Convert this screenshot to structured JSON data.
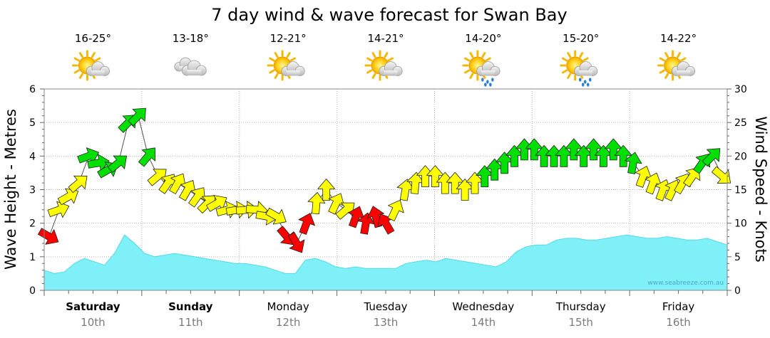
{
  "chart_data": {
    "type": "line",
    "title": "7 day wind & wave forecast for Swan Bay",
    "ylabel_left": "Wave Height - Metres",
    "ylabel_right": "Wind Speed - Knots",
    "ylim_left": [
      0,
      6
    ],
    "ylim_right": [
      0,
      30
    ],
    "yticks_left": [
      "0",
      "1",
      "2",
      "3",
      "4",
      "5",
      "6"
    ],
    "yticks_right": [
      "0",
      "5",
      "10",
      "15",
      "20",
      "25",
      "30"
    ],
    "watermark": "www.seabreeze.com.au",
    "days": [
      {
        "name": "Saturday",
        "date": "10th",
        "temp": "16-25°",
        "weather": "partly-cloudy",
        "bold": true
      },
      {
        "name": "Sunday",
        "date": "11th",
        "temp": "13-18°",
        "weather": "cloudy",
        "bold": true
      },
      {
        "name": "Monday",
        "date": "12th",
        "temp": "12-21°",
        "weather": "partly-cloudy",
        "bold": false
      },
      {
        "name": "Tuesday",
        "date": "13th",
        "temp": "14-21°",
        "weather": "partly-cloudy",
        "bold": false
      },
      {
        "name": "Wednesday",
        "date": "14th",
        "temp": "14-20°",
        "weather": "showers",
        "bold": false
      },
      {
        "name": "Thursday",
        "date": "15th",
        "temp": "15-20°",
        "weather": "showers",
        "bold": false
      },
      {
        "name": "Friday",
        "date": "16th",
        "temp": "14-22°",
        "weather": "partly-cloudy",
        "bold": false
      }
    ],
    "wave_height_m": [
      0.6,
      0.5,
      0.55,
      0.8,
      0.95,
      0.85,
      0.75,
      1.1,
      1.65,
      1.4,
      1.1,
      1.0,
      1.05,
      1.1,
      1.05,
      1.0,
      0.95,
      0.9,
      0.85,
      0.8,
      0.8,
      0.75,
      0.7,
      0.6,
      0.5,
      0.5,
      0.9,
      0.95,
      0.85,
      0.7,
      0.65,
      0.7,
      0.65,
      0.65,
      0.65,
      0.65,
      0.8,
      0.85,
      0.9,
      0.85,
      0.95,
      0.9,
      0.85,
      0.8,
      0.75,
      0.7,
      0.85,
      1.15,
      1.3,
      1.35,
      1.35,
      1.5,
      1.55,
      1.55,
      1.5,
      1.5,
      1.55,
      1.6,
      1.65,
      1.6,
      1.55,
      1.55,
      1.6,
      1.55,
      1.5,
      1.5,
      1.55,
      1.45,
      1.35
    ],
    "wind_colors": {
      "light": "#ffff00",
      "moderate": "#00e000",
      "strong": "#ff0000"
    },
    "wind_series": [
      {
        "knots": 8,
        "dir": 300,
        "cat": "strong"
      },
      {
        "knots": 12,
        "dir": 250,
        "cat": "light"
      },
      {
        "knots": 14,
        "dir": 240,
        "cat": "light"
      },
      {
        "knots": 16,
        "dir": 230,
        "cat": "light"
      },
      {
        "knots": 20,
        "dir": 250,
        "cat": "moderate"
      },
      {
        "knots": 19,
        "dir": 260,
        "cat": "moderate"
      },
      {
        "knots": 18,
        "dir": 240,
        "cat": "moderate"
      },
      {
        "knots": 19,
        "dir": 230,
        "cat": "moderate"
      },
      {
        "knots": 25,
        "dir": 225,
        "cat": "moderate"
      },
      {
        "knots": 26,
        "dir": 225,
        "cat": "moderate"
      },
      {
        "knots": 20,
        "dir": 220,
        "cat": "moderate"
      },
      {
        "knots": 17,
        "dir": 230,
        "cat": "light"
      },
      {
        "knots": 16,
        "dir": 215,
        "cat": "light"
      },
      {
        "knots": 16,
        "dir": 210,
        "cat": "light"
      },
      {
        "knots": 15,
        "dir": 210,
        "cat": "light"
      },
      {
        "knots": 14,
        "dir": 215,
        "cat": "light"
      },
      {
        "knots": 13,
        "dir": 225,
        "cat": "light"
      },
      {
        "knots": 13,
        "dir": 240,
        "cat": "light"
      },
      {
        "knots": 12,
        "dir": 255,
        "cat": "light"
      },
      {
        "knots": 12,
        "dir": 260,
        "cat": "light"
      },
      {
        "knots": 12,
        "dir": 265,
        "cat": "light"
      },
      {
        "knots": 12,
        "dir": 275,
        "cat": "light"
      },
      {
        "knots": 11,
        "dir": 280,
        "cat": "light"
      },
      {
        "knots": 11,
        "dir": 300,
        "cat": "light"
      },
      {
        "knots": 8,
        "dir": 320,
        "cat": "strong"
      },
      {
        "knots": 7,
        "dir": 330,
        "cat": "strong"
      },
      {
        "knots": 10,
        "dir": 200,
        "cat": "strong"
      },
      {
        "knots": 13,
        "dir": 185,
        "cat": "light"
      },
      {
        "knots": 15,
        "dir": 180,
        "cat": "light"
      },
      {
        "knots": 13,
        "dir": 205,
        "cat": "light"
      },
      {
        "knots": 12,
        "dir": 230,
        "cat": "light"
      },
      {
        "knots": 11,
        "dir": 200,
        "cat": "strong"
      },
      {
        "knots": 10,
        "dir": 190,
        "cat": "strong"
      },
      {
        "knots": 11,
        "dir": 165,
        "cat": "strong"
      },
      {
        "knots": 10,
        "dir": 150,
        "cat": "strong"
      },
      {
        "knots": 12,
        "dir": 205,
        "cat": "light"
      },
      {
        "knots": 15,
        "dir": 190,
        "cat": "light"
      },
      {
        "knots": 16,
        "dir": 185,
        "cat": "light"
      },
      {
        "knots": 17,
        "dir": 180,
        "cat": "light"
      },
      {
        "knots": 17,
        "dir": 180,
        "cat": "light"
      },
      {
        "knots": 16,
        "dir": 180,
        "cat": "light"
      },
      {
        "knots": 16,
        "dir": 180,
        "cat": "light"
      },
      {
        "knots": 15,
        "dir": 180,
        "cat": "light"
      },
      {
        "knots": 16,
        "dir": 180,
        "cat": "light"
      },
      {
        "knots": 17,
        "dir": 180,
        "cat": "moderate"
      },
      {
        "knots": 18,
        "dir": 180,
        "cat": "moderate"
      },
      {
        "knots": 19,
        "dir": 180,
        "cat": "moderate"
      },
      {
        "knots": 20,
        "dir": 180,
        "cat": "moderate"
      },
      {
        "knots": 21,
        "dir": 180,
        "cat": "moderate"
      },
      {
        "knots": 21,
        "dir": 180,
        "cat": "moderate"
      },
      {
        "knots": 20,
        "dir": 180,
        "cat": "moderate"
      },
      {
        "knots": 20,
        "dir": 180,
        "cat": "moderate"
      },
      {
        "knots": 20,
        "dir": 180,
        "cat": "moderate"
      },
      {
        "knots": 21,
        "dir": 180,
        "cat": "moderate"
      },
      {
        "knots": 20,
        "dir": 180,
        "cat": "moderate"
      },
      {
        "knots": 21,
        "dir": 180,
        "cat": "moderate"
      },
      {
        "knots": 20,
        "dir": 180,
        "cat": "moderate"
      },
      {
        "knots": 21,
        "dir": 180,
        "cat": "moderate"
      },
      {
        "knots": 20,
        "dir": 180,
        "cat": "moderate"
      },
      {
        "knots": 19,
        "dir": 190,
        "cat": "moderate"
      },
      {
        "knots": 17,
        "dir": 200,
        "cat": "light"
      },
      {
        "knots": 16,
        "dir": 200,
        "cat": "light"
      },
      {
        "knots": 15,
        "dir": 200,
        "cat": "light"
      },
      {
        "knots": 15,
        "dir": 205,
        "cat": "light"
      },
      {
        "knots": 16,
        "dir": 210,
        "cat": "light"
      },
      {
        "knots": 17,
        "dir": 215,
        "cat": "light"
      },
      {
        "knots": 19,
        "dir": 215,
        "cat": "moderate"
      },
      {
        "knots": 20,
        "dir": 225,
        "cat": "moderate"
      },
      {
        "knots": 17,
        "dir": 310,
        "cat": "light"
      }
    ]
  }
}
